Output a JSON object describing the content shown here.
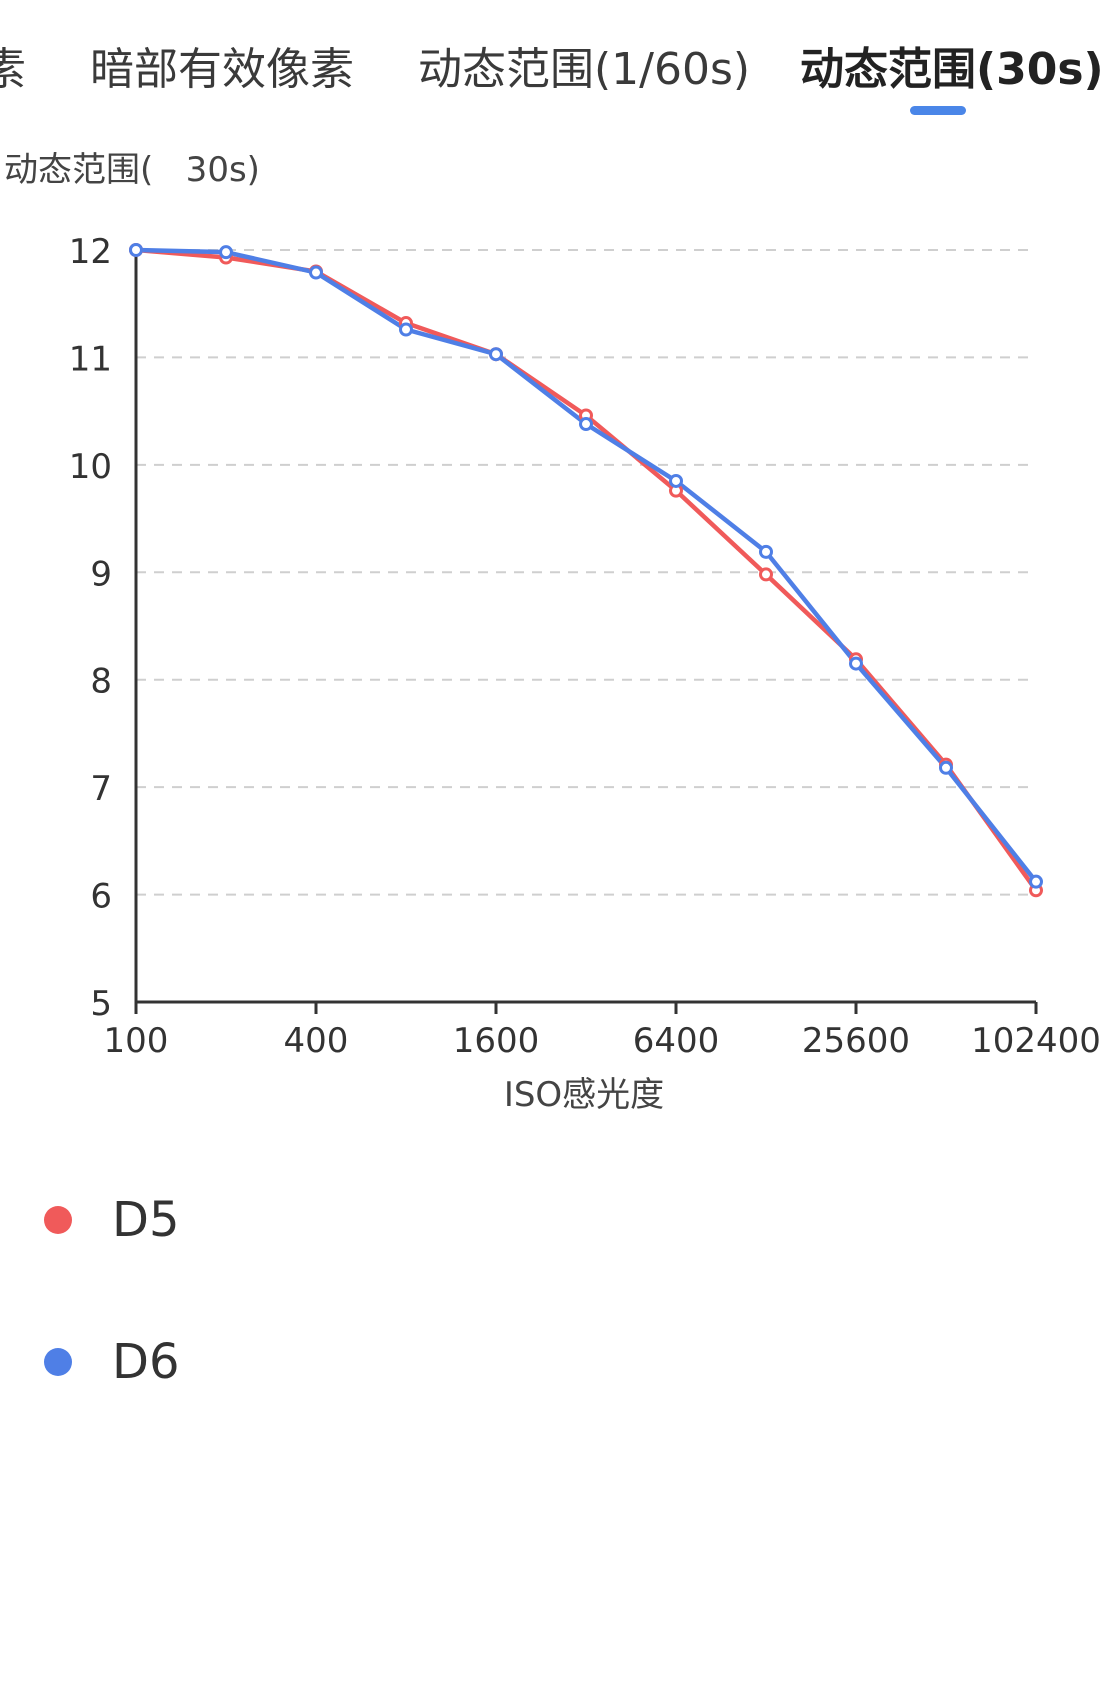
{
  "tabs": [
    {
      "label": "素",
      "active": false
    },
    {
      "label": "暗部有效像素",
      "active": false
    },
    {
      "label": "动态范围(1/60s)",
      "active": false
    },
    {
      "label": "动态范围(30s)",
      "active": true
    }
  ],
  "chart_data": {
    "type": "line",
    "title": "动态范围(   30s)",
    "xlabel": "ISO感光度",
    "ylabel": "",
    "x_scale": "log2",
    "x": [
      100,
      200,
      400,
      800,
      1600,
      3200,
      6400,
      12800,
      25600,
      51200,
      102400
    ],
    "xticks": [
      "100",
      "400",
      "1600",
      "6400",
      "25600",
      "102400"
    ],
    "ylim": [
      5,
      12
    ],
    "yticks": [
      5,
      6,
      7,
      8,
      9,
      10,
      11,
      12
    ],
    "grid": true,
    "legend_position": "bottom-left",
    "series": [
      {
        "name": "D5",
        "color": "#f05a5a",
        "values": [
          12.0,
          11.93,
          11.8,
          11.32,
          11.03,
          10.46,
          9.76,
          8.98,
          8.19,
          7.21,
          6.04
        ]
      },
      {
        "name": "D6",
        "color": "#4f7fe6",
        "values": [
          12.0,
          11.98,
          11.79,
          11.26,
          11.03,
          10.38,
          9.85,
          9.19,
          8.15,
          7.18,
          6.12
        ]
      }
    ]
  }
}
